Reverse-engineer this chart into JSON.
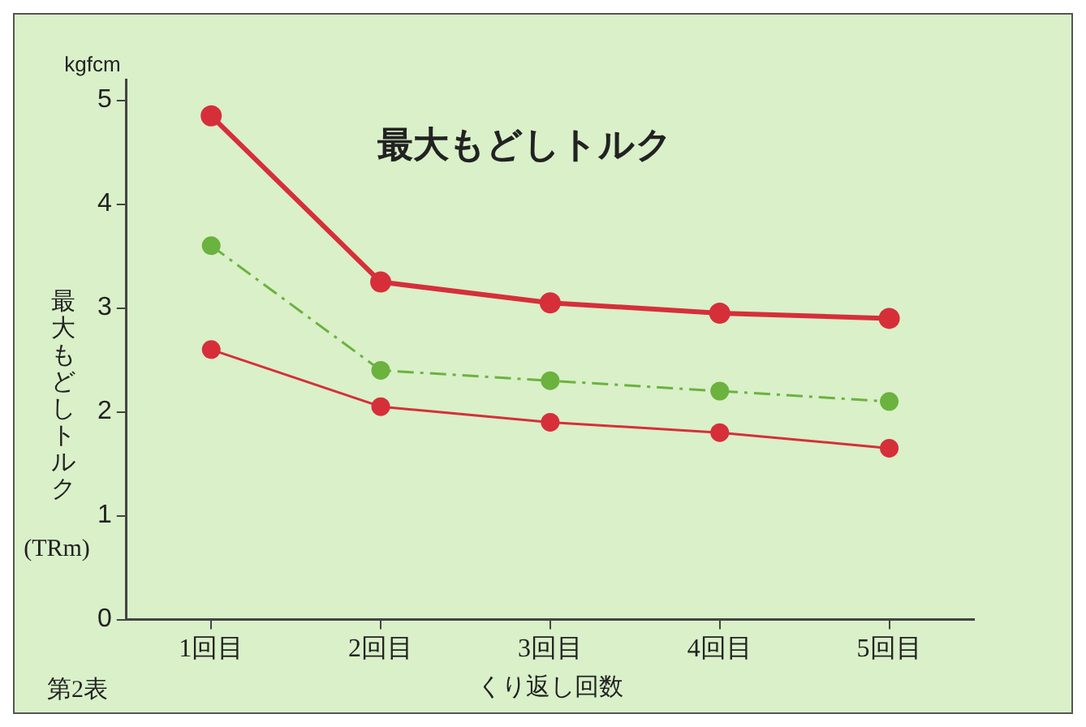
{
  "chart_data": {
    "type": "line",
    "title": "最大もどしトルク",
    "ylabel": "最大もどしトルク(TRm)",
    "xlabel": "くり返し回数",
    "annotations": [
      "kgfcm",
      "第2表"
    ],
    "categories": [
      "1回目",
      "2回目",
      "3回目",
      "4回目",
      "5回目"
    ],
    "series": [
      {
        "color": "#d62f3a",
        "values": [
          4.85,
          3.25,
          3.05,
          2.95,
          2.9
        ],
        "line_style": "solid"
      },
      {
        "color": "#6cb23e",
        "values": [
          3.6,
          2.4,
          2.3,
          2.2,
          2.1
        ],
        "line_style": "dashed"
      },
      {
        "color": "#d62f3a",
        "values": [
          2.6,
          2.05,
          1.9,
          1.8,
          1.65
        ],
        "line_style": "solid"
      }
    ],
    "ylim": [
      0,
      5.2
    ],
    "yticks": [
      0,
      1,
      2,
      3,
      4,
      5
    ],
    "grid": false,
    "legend": false,
    "marker": "circle"
  }
}
